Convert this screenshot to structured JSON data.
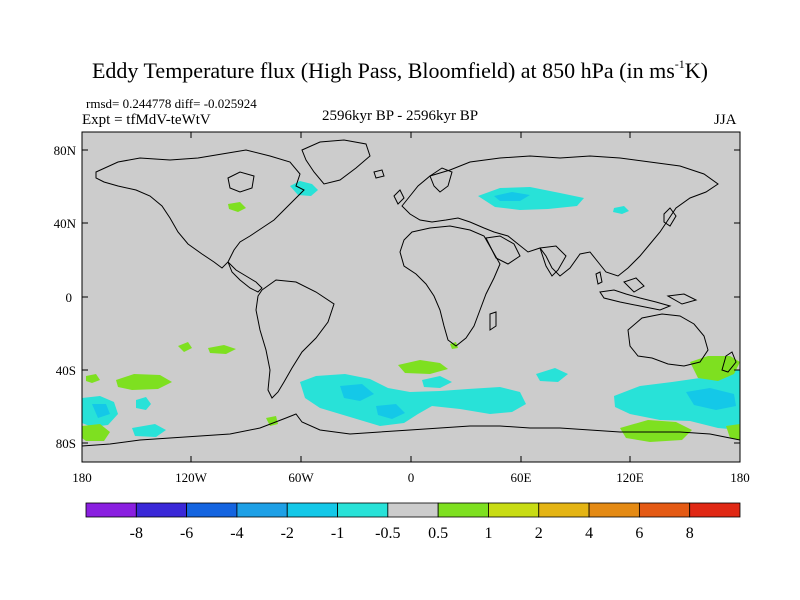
{
  "header": {
    "title_main": "Eddy Temperature flux (High Pass, Bloomfield) at 850 hPa (in ms",
    "title_sup": "-1",
    "title_end": "K)",
    "stats": "rmsd= 0.244778 diff= -0.025924",
    "experiment": "Expt = tfMdV-teWtV",
    "period": "2596kyr BP - 2596kyr BP",
    "season": "JJA"
  },
  "axes": {
    "y_labels": [
      "80N",
      "40N",
      "0",
      "40S",
      "80S"
    ],
    "x_labels": [
      "180",
      "120W",
      "60W",
      "0",
      "60E",
      "120E",
      "180"
    ]
  },
  "colorbar": {
    "labels": [
      "-8",
      "-6",
      "-4",
      "-2",
      "-1",
      "-0.5",
      "0.5",
      "1",
      "2",
      "4",
      "6",
      "8"
    ],
    "colors": [
      "#8a1fe0",
      "#3a28d8",
      "#1464e0",
      "#1ea0e6",
      "#14c8e8",
      "#28e2d8",
      "#cccccc",
      "#7ee020",
      "#c8dc14",
      "#e4b414",
      "#e48a14",
      "#e45a14",
      "#e02814"
    ]
  },
  "map_colors": {
    "ocean_land": "#cccccc",
    "cyan": "#28e2d8",
    "light_cyan": "#14c8e8",
    "green": "#7ee020",
    "coast": "#000000"
  }
}
